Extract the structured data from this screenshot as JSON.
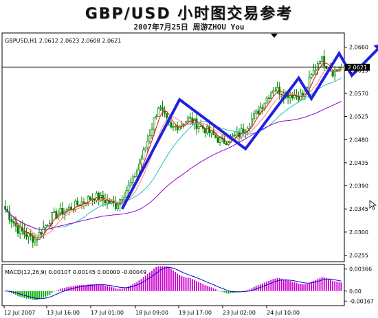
{
  "header": {
    "title": "GBP/USD 小时图交易参考",
    "subtitle": "2007年7月25日    周游ZHOU You"
  },
  "chart_data": [
    {
      "type": "candlestick",
      "symbol_info": "GBPUSD,H1 2.0612 2.0623 2.0608 2.0621",
      "current_price": 2.0621,
      "current_price_label": "2.0621",
      "ylim": [
        2.0245,
        2.0685
      ],
      "y_ticks": [
        2.066,
        2.0615,
        2.057,
        2.0525,
        2.048,
        2.0435,
        2.039,
        2.0345,
        2.03,
        2.0255
      ],
      "y_tick_labels": [
        "2.0660",
        "2.0615",
        "2.0570",
        "2.0525",
        "2.0480",
        "2.0435",
        "2.0390",
        "2.0345",
        "2.0300",
        "2.0255"
      ],
      "x_tick_labels": [
        "12 Jul 2007",
        "13 Jul 16:00",
        "17 Jul 01:00",
        "18 Jul 09:00",
        "19 Jul 17:00",
        "23 Jul 02:00",
        "24 Jul 10:00"
      ],
      "price_path": [
        {
          "i": 0,
          "p": 2.0345
        },
        {
          "i": 6,
          "p": 2.0305
        },
        {
          "i": 14,
          "p": 2.0285
        },
        {
          "i": 22,
          "p": 2.033
        },
        {
          "i": 32,
          "p": 2.035
        },
        {
          "i": 42,
          "p": 2.037
        },
        {
          "i": 52,
          "p": 2.0352
        },
        {
          "i": 60,
          "p": 2.04
        },
        {
          "i": 66,
          "p": 2.0465
        },
        {
          "i": 72,
          "p": 2.0545
        },
        {
          "i": 78,
          "p": 2.05
        },
        {
          "i": 86,
          "p": 2.052
        },
        {
          "i": 94,
          "p": 2.05
        },
        {
          "i": 102,
          "p": 2.0475
        },
        {
          "i": 110,
          "p": 2.049
        },
        {
          "i": 118,
          "p": 2.053
        },
        {
          "i": 126,
          "p": 2.058
        },
        {
          "i": 132,
          "p": 2.057
        },
        {
          "i": 140,
          "p": 2.0565
        },
        {
          "i": 148,
          "p": 2.064
        },
        {
          "i": 154,
          "p": 2.0612
        },
        {
          "i": 158,
          "p": 2.0621
        }
      ],
      "bar_count": 159,
      "moving_averages": [
        {
          "color": "#ff0000",
          "period": 5
        },
        {
          "color": "#ff8080",
          "period": 10
        },
        {
          "color": "#20c0c0",
          "period": 25
        },
        {
          "color": "#9900cc",
          "period": 60
        }
      ],
      "annotations": {
        "trend_arrow": {
          "color": "#2020e0",
          "points": [
            {
              "i": 55,
              "p": 2.0345
            },
            {
              "i": 82,
              "p": 2.0558
            },
            {
              "i": 113,
              "p": 2.0462
            },
            {
              "i": 138,
              "p": 2.06
            },
            {
              "i": 144,
              "p": 2.056
            },
            {
              "i": 157,
              "p": 2.0648
            },
            {
              "i": 163,
              "p": 2.0605
            },
            {
              "i": 178,
              "p": 2.0668
            }
          ]
        }
      }
    },
    {
      "type": "macd",
      "label": "MACD(12,26,9) 0.00107 0.00145 0.00000 -0.00049",
      "ylim": [
        -0.0022,
        0.0042
      ],
      "y_ticks": [
        0.00366,
        0,
        -0.00167
      ],
      "y_tick_labels": [
        "0.00366",
        "0.00",
        "-0.00167"
      ]
    }
  ]
}
